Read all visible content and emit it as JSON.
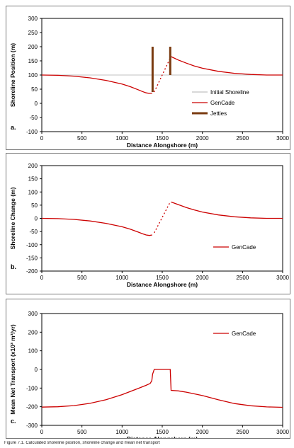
{
  "chart_data": [
    {
      "type": "line",
      "panel_label": "a.",
      "xlabel": "Distance Alongshore  (m)",
      "ylabel": "Shoreline Position (m)",
      "xlim": [
        0,
        3000
      ],
      "ylim": [
        -100,
        300
      ],
      "xticks": [
        0,
        500,
        1000,
        1500,
        2000,
        2500,
        3000
      ],
      "yticks": [
        -100,
        -50,
        0,
        50,
        100,
        150,
        200,
        250,
        300
      ],
      "grid": false,
      "legend_position": "right",
      "colors": {
        "initial": "#c0c0c0",
        "gencade": "#cc0000",
        "jetties": "#7a3b10"
      },
      "series": [
        {
          "name": "Initial Shoreline",
          "style": "line",
          "x": [
            0,
            3000
          ],
          "y": [
            100,
            100
          ]
        },
        {
          "name": "GenCade",
          "style": "line",
          "segments": [
            {
              "x": [
                0,
                200,
                400,
                600,
                800,
                1000,
                1100,
                1200,
                1250,
                1300,
                1340,
                1375
              ],
              "y": [
                100,
                99,
                96,
                90,
                81,
                68,
                59,
                48,
                42,
                37,
                35,
                36
              ]
            },
            {
              "x": [
                1400,
                1600
              ],
              "y": [
                40,
                160
              ],
              "dashed": true
            },
            {
              "x": [
                1610,
                1700,
                1800,
                1900,
                2000,
                2200,
                2400,
                2600,
                2800,
                3000
              ],
              "y": [
                165,
                153,
                142,
                132,
                124,
                113,
                106,
                102,
                100,
                100
              ]
            }
          ]
        },
        {
          "name": "Jetties",
          "style": "bar",
          "segments": [
            {
              "x": [
                1380,
                1380
              ],
              "y": [
                40,
                200
              ]
            },
            {
              "x": [
                1600,
                1600
              ],
              "y": [
                100,
                200
              ]
            }
          ]
        }
      ]
    },
    {
      "type": "line",
      "panel_label": "b.",
      "xlabel": "Distance Alongshore  (m)",
      "ylabel": "Shoreline Change (m)",
      "xlim": [
        0,
        3000
      ],
      "ylim": [
        -200,
        200
      ],
      "xticks": [
        0,
        500,
        1000,
        1500,
        2000,
        2500,
        3000
      ],
      "yticks": [
        -200,
        -150,
        -100,
        -50,
        0,
        50,
        100,
        150,
        200
      ],
      "grid": false,
      "legend_position": "right",
      "colors": {
        "gencade": "#cc0000"
      },
      "series": [
        {
          "name": "GenCade",
          "style": "line",
          "segments": [
            {
              "x": [
                0,
                200,
                400,
                600,
                800,
                1000,
                1100,
                1200,
                1250,
                1300,
                1340,
                1375
              ],
              "y": [
                0,
                -1,
                -4,
                -10,
                -19,
                -32,
                -41,
                -52,
                -58,
                -63,
                -65,
                -63
              ]
            },
            {
              "x": [
                1400,
                1600
              ],
              "y": [
                -55,
                62
              ],
              "dashed": true
            },
            {
              "x": [
                1610,
                1700,
                1800,
                1900,
                2000,
                2200,
                2400,
                2600,
                2800,
                3000
              ],
              "y": [
                62,
                52,
                41,
                32,
                24,
                13,
                6,
                2,
                0,
                0
              ]
            }
          ]
        }
      ]
    },
    {
      "type": "line",
      "panel_label": "c.",
      "xlabel": "Distance Alongshore  (m)",
      "ylabel": "Mean Net Transport (x10³ m³/yr)",
      "xlim": [
        0,
        3000
      ],
      "ylim": [
        -300,
        300
      ],
      "xticks": [
        0,
        500,
        1000,
        1500,
        2000,
        2500,
        3000
      ],
      "yticks": [
        -300,
        -200,
        -100,
        0,
        100,
        200,
        300
      ],
      "grid": false,
      "legend_position": "top-right",
      "colors": {
        "gencade": "#cc0000"
      },
      "series": [
        {
          "name": "GenCade",
          "style": "line",
          "segments": [
            {
              "x": [
                0,
                200,
                400,
                600,
                800,
                1000,
                1200,
                1300,
                1350,
                1370,
                1380,
                1400,
                1500,
                1600,
                1610,
                1700,
                1800,
                2000,
                2200,
                2400,
                2600,
                2800,
                3000
              ],
              "y": [
                -202,
                -200,
                -194,
                -182,
                -162,
                -135,
                -102,
                -85,
                -75,
                -60,
                -25,
                0,
                0,
                0,
                -112,
                -115,
                -122,
                -140,
                -163,
                -183,
                -195,
                -201,
                -203
              ]
            }
          ]
        }
      ]
    }
  ],
  "caption": "Figure 7.1. Calculated shoreline position, shoreline change and mean net transport"
}
